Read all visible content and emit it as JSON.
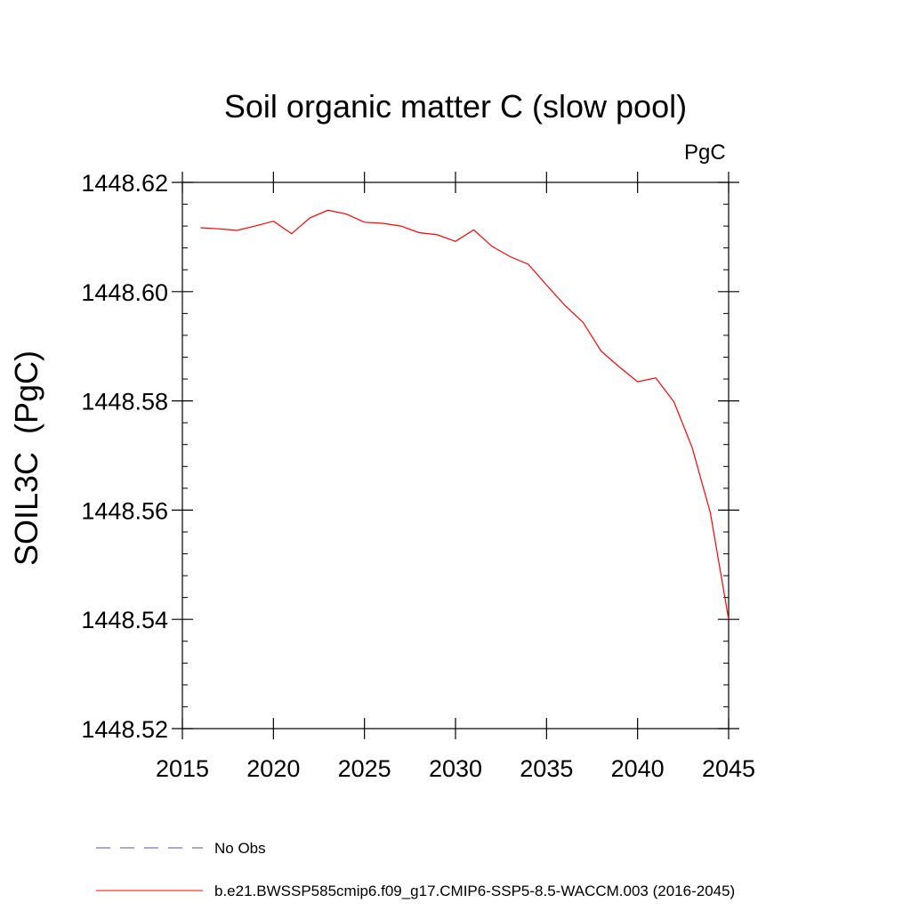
{
  "chart_data": {
    "type": "line",
    "title": "Soil organic matter C (slow pool)",
    "units": "PgC",
    "xlabel": "",
    "ylabel": "SOIL3C  (PgC)",
    "xlim": [
      2015,
      2045
    ],
    "ylim": [
      1448.52,
      1448.62
    ],
    "x_ticks": [
      "2015",
      "2020",
      "2025",
      "2030",
      "2035",
      "2040",
      "2045"
    ],
    "y_ticks": [
      "1448.52",
      "1448.54",
      "1448.56",
      "1448.58",
      "1448.60",
      "1448.62"
    ],
    "series": [
      {
        "name": "b.e21.BWSSP585cmip6.f09_g17.CMIP6-SSP5-8.5-WACCM.003 (2016-2045)",
        "color": "#ff0000",
        "style": "solid",
        "x": [
          2016,
          2017,
          2018,
          2019,
          2020,
          2021,
          2022,
          2023,
          2024,
          2025,
          2026,
          2027,
          2028,
          2029,
          2030,
          2031,
          2032,
          2033,
          2034,
          2035,
          2036,
          2037,
          2038,
          2039,
          2040,
          2041,
          2042,
          2043,
          2044,
          2045
        ],
        "values": [
          1448.6117,
          1448.6115,
          1448.6112,
          1448.612,
          1448.6129,
          1448.6106,
          1448.6135,
          1448.6149,
          1448.6142,
          1448.6127,
          1448.6125,
          1448.612,
          1448.6108,
          1448.6104,
          1448.6092,
          1448.6113,
          1448.6083,
          1448.6064,
          1448.605,
          1448.6012,
          1448.5975,
          1448.5944,
          1448.5891,
          1448.5862,
          1448.5835,
          1448.5842,
          1448.5798,
          1448.5714,
          1448.5595,
          1448.54
        ]
      }
    ],
    "legend": [
      {
        "label": "No Obs",
        "color": "#5a52a6",
        "style": "dashed"
      },
      {
        "label": "b.e21.BWSSP585cmip6.f09_g17.CMIP6-SSP5-8.5-WACCM.003 (2016-2045)",
        "color": "#ff0000",
        "style": "solid"
      }
    ]
  }
}
